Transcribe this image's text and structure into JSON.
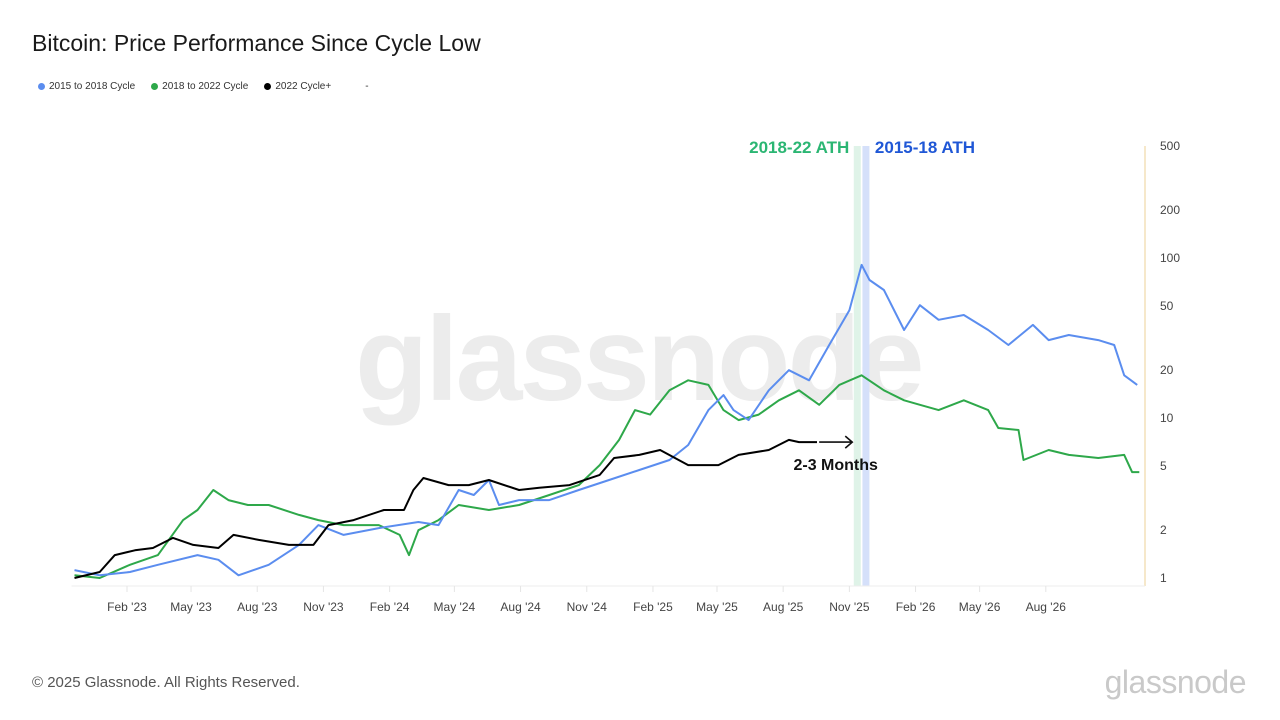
{
  "title": "Bitcoin: Price Performance Since Cycle Low",
  "legend": [
    {
      "label": "2015 to 2018 Cycle",
      "color": "#5b8def"
    },
    {
      "label": "2018 to 2022 Cycle",
      "color": "#2ea84a"
    },
    {
      "label": "2022 Cycle+",
      "color": "#000000"
    },
    {
      "label": "-",
      "color": ""
    }
  ],
  "watermark": "glassnode",
  "footer": "© 2025 Glassnode. All Rights Reserved.",
  "logo": "glassnode",
  "chart_data": {
    "type": "line",
    "title": "Bitcoin: Price Performance Since Cycle Low",
    "y_scale": "log",
    "ylim": [
      1,
      500
    ],
    "y_ticks": [
      "1",
      "2",
      "5",
      "10",
      "20",
      "50",
      "100",
      "200",
      "500"
    ],
    "y_tick_values": [
      1,
      2,
      5,
      10,
      20,
      50,
      100,
      200,
      500
    ],
    "x_ticks": [
      "Feb '23",
      "May '23",
      "Aug '23",
      "Nov '23",
      "Feb '24",
      "May '24",
      "Aug '24",
      "Nov '24",
      "Feb '25",
      "May '25",
      "Aug '25",
      "Nov '25",
      "Feb '26",
      "May '26",
      "Aug '26"
    ],
    "x_tick_dates": [
      "2023-02-01",
      "2023-05-01",
      "2023-08-01",
      "2023-11-01",
      "2024-02-01",
      "2024-05-01",
      "2024-08-01",
      "2024-11-01",
      "2025-02-01",
      "2025-05-01",
      "2025-08-01",
      "2025-11-01",
      "2026-02-01",
      "2026-05-01",
      "2026-08-01"
    ],
    "xlim": [
      "2022-11-20",
      "2026-12-10"
    ],
    "grid": false,
    "legend_position": "top-left",
    "series": [
      {
        "name": "2015 to 2018 Cycle",
        "color": "#5b8def",
        "points": [
          [
            "2022-11-20",
            1.12
          ],
          [
            "2022-12-25",
            1.04
          ],
          [
            "2023-02-05",
            1.09
          ],
          [
            "2023-03-16",
            1.21
          ],
          [
            "2023-05-10",
            1.39
          ],
          [
            "2023-06-08",
            1.3
          ],
          [
            "2023-07-06",
            1.04
          ],
          [
            "2023-08-17",
            1.21
          ],
          [
            "2023-09-28",
            1.61
          ],
          [
            "2023-10-25",
            2.14
          ],
          [
            "2023-11-29",
            1.86
          ],
          [
            "2024-01-17",
            2.05
          ],
          [
            "2024-03-12",
            2.24
          ],
          [
            "2024-04-09",
            2.14
          ],
          [
            "2024-05-07",
            3.55
          ],
          [
            "2024-05-28",
            3.3
          ],
          [
            "2024-06-18",
            4.1
          ],
          [
            "2024-07-02",
            2.86
          ],
          [
            "2024-07-30",
            3.07
          ],
          [
            "2024-09-10",
            3.07
          ],
          [
            "2024-10-21",
            3.55
          ],
          [
            "2024-12-02",
            4.1
          ],
          [
            "2025-01-13",
            4.73
          ],
          [
            "2025-02-24",
            5.46
          ],
          [
            "2025-03-22",
            6.78
          ],
          [
            "2025-04-19",
            11.2
          ],
          [
            "2025-05-10",
            13.9
          ],
          [
            "2025-05-24",
            11.2
          ],
          [
            "2025-06-14",
            9.7
          ],
          [
            "2025-07-12",
            14.9
          ],
          [
            "2025-08-09",
            19.9
          ],
          [
            "2025-09-06",
            17.2
          ],
          [
            "2025-10-04",
            28.6
          ],
          [
            "2025-11-01",
            47.2
          ],
          [
            "2025-11-18",
            90.6
          ],
          [
            "2025-11-29",
            72.9
          ],
          [
            "2025-12-19",
            63.1
          ],
          [
            "2026-01-16",
            35.5
          ],
          [
            "2026-02-07",
            50.7
          ],
          [
            "2026-03-05",
            41.1
          ],
          [
            "2026-04-09",
            44.0
          ],
          [
            "2026-05-13",
            35.5
          ],
          [
            "2026-06-10",
            28.6
          ],
          [
            "2026-07-14",
            38.2
          ],
          [
            "2026-08-05",
            30.7
          ],
          [
            "2026-09-02",
            33.0
          ],
          [
            "2026-10-13",
            30.7
          ],
          [
            "2026-11-04",
            28.6
          ],
          [
            "2026-11-18",
            18.5
          ],
          [
            "2026-12-06",
            16.1
          ]
        ]
      },
      {
        "name": "2018 to 2022 Cycle",
        "color": "#2ea84a",
        "points": [
          [
            "2022-11-20",
            1.04
          ],
          [
            "2022-12-25",
            1.0
          ],
          [
            "2023-02-05",
            1.21
          ],
          [
            "2023-03-16",
            1.39
          ],
          [
            "2023-04-20",
            2.3
          ],
          [
            "2023-05-10",
            2.66
          ],
          [
            "2023-06-01",
            3.55
          ],
          [
            "2023-06-22",
            3.07
          ],
          [
            "2023-07-19",
            2.86
          ],
          [
            "2023-08-17",
            2.86
          ],
          [
            "2023-09-28",
            2.48
          ],
          [
            "2023-10-25",
            2.3
          ],
          [
            "2023-11-29",
            2.14
          ],
          [
            "2024-01-17",
            2.14
          ],
          [
            "2024-02-15",
            1.86
          ],
          [
            "2024-02-28",
            1.39
          ],
          [
            "2024-03-12",
            1.99
          ],
          [
            "2024-04-09",
            2.3
          ],
          [
            "2024-05-07",
            2.86
          ],
          [
            "2024-06-18",
            2.66
          ],
          [
            "2024-07-30",
            2.86
          ],
          [
            "2024-09-10",
            3.3
          ],
          [
            "2024-10-21",
            3.81
          ],
          [
            "2024-11-19",
            5.08
          ],
          [
            "2024-12-16",
            7.3
          ],
          [
            "2025-01-07",
            11.2
          ],
          [
            "2025-01-28",
            10.5
          ],
          [
            "2025-02-24",
            14.9
          ],
          [
            "2025-03-22",
            17.2
          ],
          [
            "2025-04-19",
            16.1
          ],
          [
            "2025-05-10",
            11.2
          ],
          [
            "2025-05-31",
            9.7
          ],
          [
            "2025-06-28",
            10.5
          ],
          [
            "2025-07-26",
            12.9
          ],
          [
            "2025-08-23",
            14.9
          ],
          [
            "2025-09-20",
            12.1
          ],
          [
            "2025-10-18",
            16.1
          ],
          [
            "2025-11-18",
            18.5
          ],
          [
            "2025-12-19",
            14.9
          ],
          [
            "2026-01-16",
            12.9
          ],
          [
            "2026-02-07",
            12.1
          ],
          [
            "2026-03-05",
            11.2
          ],
          [
            "2026-04-09",
            12.9
          ],
          [
            "2026-05-13",
            11.2
          ],
          [
            "2026-05-27",
            8.66
          ],
          [
            "2026-06-24",
            8.41
          ],
          [
            "2026-07-01",
            5.46
          ],
          [
            "2026-08-05",
            6.31
          ],
          [
            "2026-09-02",
            5.88
          ],
          [
            "2026-10-13",
            5.62
          ],
          [
            "2026-11-18",
            5.88
          ],
          [
            "2026-11-29",
            4.59
          ],
          [
            "2026-12-09",
            4.59
          ]
        ]
      },
      {
        "name": "2022 Cycle+",
        "color": "#000000",
        "points": [
          [
            "2022-11-20",
            1.0
          ],
          [
            "2022-12-25",
            1.09
          ],
          [
            "2023-01-15",
            1.39
          ],
          [
            "2023-02-12",
            1.49
          ],
          [
            "2023-03-09",
            1.54
          ],
          [
            "2023-04-06",
            1.78
          ],
          [
            "2023-05-04",
            1.61
          ],
          [
            "2023-06-08",
            1.54
          ],
          [
            "2023-06-29",
            1.86
          ],
          [
            "2023-08-03",
            1.73
          ],
          [
            "2023-09-14",
            1.61
          ],
          [
            "2023-10-18",
            1.61
          ],
          [
            "2023-11-08",
            2.14
          ],
          [
            "2023-12-13",
            2.3
          ],
          [
            "2024-01-24",
            2.66
          ],
          [
            "2024-02-21",
            2.66
          ],
          [
            "2024-03-05",
            3.55
          ],
          [
            "2024-03-19",
            4.22
          ],
          [
            "2024-04-23",
            3.81
          ],
          [
            "2024-05-21",
            3.81
          ],
          [
            "2024-06-18",
            4.1
          ],
          [
            "2024-07-30",
            3.55
          ],
          [
            "2024-08-27",
            3.66
          ],
          [
            "2024-10-08",
            3.81
          ],
          [
            "2024-11-19",
            4.41
          ],
          [
            "2024-12-09",
            5.62
          ],
          [
            "2025-01-13",
            5.88
          ],
          [
            "2025-02-11",
            6.31
          ],
          [
            "2025-03-22",
            5.08
          ],
          [
            "2025-05-03",
            5.08
          ],
          [
            "2025-05-31",
            5.88
          ],
          [
            "2025-07-12",
            6.31
          ],
          [
            "2025-08-09",
            7.3
          ],
          [
            "2025-08-23",
            7.07
          ],
          [
            "2025-09-17",
            7.07
          ]
        ]
      }
    ],
    "annotations": [
      {
        "text": "2018-22 ATH",
        "color": "#2bb673",
        "date": "2025-11-12",
        "band_color": "#dff3e8"
      },
      {
        "text": "2015-18 ATH",
        "color": "#1f57d6",
        "date": "2025-11-24",
        "band_color": "#d5e0fa"
      },
      {
        "text": "2-3 Months",
        "color": "#111111",
        "arrow_from": "2025-09-20",
        "arrow_to": "2025-11-05",
        "value": 7.07
      }
    ]
  }
}
